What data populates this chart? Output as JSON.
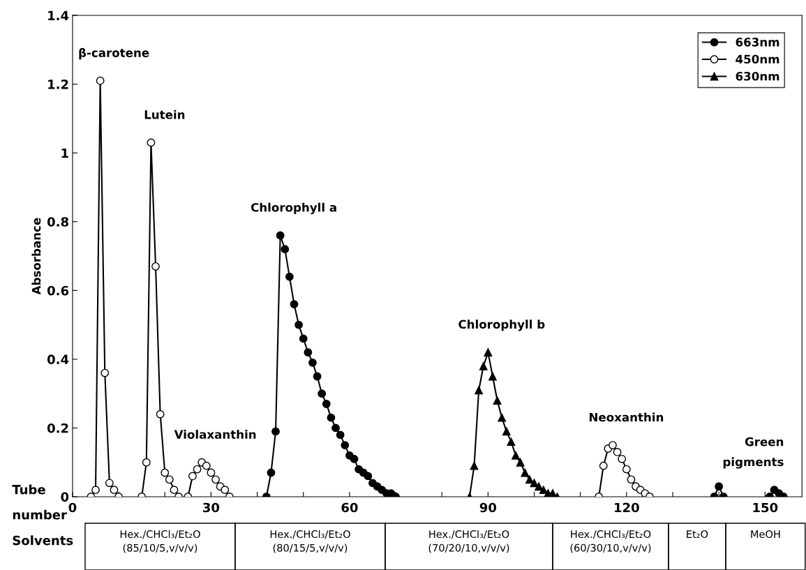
{
  "chart_data": {
    "type": "line",
    "xlabel": "Tube number",
    "ylabel": "Absorbance",
    "xlim": [
      0,
      158
    ],
    "ylim": [
      0,
      1.4
    ],
    "xticks": [
      0,
      {
        "value": 10,
        "label": null
      },
      {
        "value": 20,
        "label": null
      },
      30,
      {
        "value": 40,
        "label": null
      },
      {
        "value": 50,
        "label": null
      },
      60,
      {
        "value": 70,
        "label": null
      },
      {
        "value": 80,
        "label": null
      },
      90,
      {
        "value": 100,
        "label": null
      },
      {
        "value": 110,
        "label": null
      },
      120,
      {
        "value": 130,
        "label": null
      },
      {
        "value": 140,
        "label": null
      },
      150
    ],
    "yticks": [
      0,
      0.2,
      0.4,
      0.6,
      0.8,
      1,
      1.2,
      1.4
    ],
    "grid": false,
    "legend": "top right",
    "line_style": "solid",
    "series": [
      {
        "name": "663nm",
        "color": "#000000",
        "marker": "circle",
        "x": [
          42,
          43,
          44,
          45,
          46,
          47,
          48,
          49,
          50,
          51,
          52,
          53,
          54,
          55,
          56,
          57,
          58,
          59,
          60,
          61,
          62,
          63,
          64,
          65,
          66,
          67,
          68,
          69,
          70,
          null,
          139,
          140,
          141,
          null,
          151,
          152,
          153,
          154
        ],
        "values": [
          0,
          0.07,
          0.19,
          0.76,
          0.72,
          0.64,
          0.56,
          0.5,
          0.46,
          0.42,
          0.39,
          0.35,
          0.3,
          0.27,
          0.23,
          0.2,
          0.18,
          0.15,
          0.12,
          0.11,
          0.08,
          0.07,
          0.06,
          0.04,
          0.03,
          0.02,
          0.01,
          0.01,
          0,
          null,
          0,
          0.03,
          0,
          null,
          0,
          0.02,
          0.01,
          0
        ]
      },
      {
        "name": "450nm",
        "color": "#ffffff",
        "marker": "circle",
        "x": [
          4,
          5,
          6,
          7,
          8,
          9,
          10,
          null,
          15,
          16,
          17,
          18,
          19,
          20,
          21,
          22,
          23,
          null,
          25,
          26,
          27,
          28,
          29,
          30,
          31,
          32,
          33,
          34,
          null,
          114,
          115,
          116,
          117,
          118,
          119,
          120,
          121,
          122,
          123,
          124,
          125
        ],
        "values": [
          0,
          0.02,
          1.21,
          0.36,
          0.04,
          0.02,
          0,
          null,
          0,
          0.1,
          1.03,
          0.67,
          0.24,
          0.07,
          0.05,
          0.02,
          0,
          null,
          0,
          0.06,
          0.08,
          0.1,
          0.09,
          0.07,
          0.05,
          0.03,
          0.02,
          0,
          null,
          0,
          0.09,
          0.14,
          0.15,
          0.13,
          0.11,
          0.08,
          0.05,
          0.03,
          0.02,
          0.01,
          0
        ]
      },
      {
        "name": "630nm",
        "color": "#000000",
        "marker": "triangle",
        "x": [
          86,
          87,
          88,
          89,
          90,
          91,
          92,
          93,
          94,
          95,
          96,
          97,
          98,
          99,
          100,
          101,
          102,
          103,
          104,
          105
        ],
        "values": [
          0,
          0.09,
          0.31,
          0.38,
          0.42,
          0.35,
          0.28,
          0.23,
          0.19,
          0.16,
          0.12,
          0.1,
          0.07,
          0.05,
          0.04,
          0.03,
          0.02,
          0.01,
          0.01,
          0
        ]
      }
    ],
    "annotations": [
      {
        "text": "β-carotene",
        "x": 6,
        "y": 1.21
      },
      {
        "text": "Lutein",
        "x": 17,
        "y": 1.03
      },
      {
        "text": "Violaxanthin",
        "x": 28,
        "y": 0.1
      },
      {
        "text": "Chlorophyll a",
        "x": 45,
        "y": 0.76
      },
      {
        "text": "Chlorophyll b",
        "x": 90,
        "y": 0.42
      },
      {
        "text": "Neoxanthin",
        "x": 117,
        "y": 0.15
      },
      {
        "text": "Green\npigments",
        "x": 152,
        "y": 0.02
      },
      "Solvents",
      "Hex./CHCl₃/Et₂O\n(85/10/5,v/v/v)",
      "Hex./CHCl₃/Et₂O\n(80/15/5,v/v/v)",
      "Hex./CHCl₃/Et₂O\n(70/20/10,v/v/v)",
      "Hex./CHCl₃/Et₂O\n(60/30/10,v/v/v)",
      "Et₂O",
      "MeOH"
    ]
  }
}
